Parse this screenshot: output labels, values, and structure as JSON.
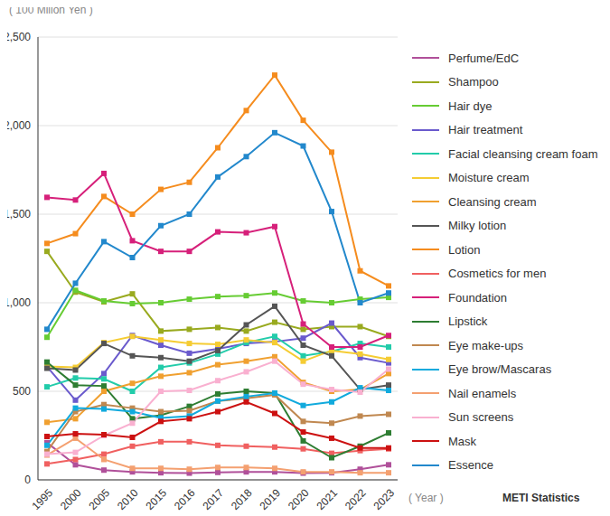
{
  "chart_data": {
    "type": "line",
    "y_label": "( 100 Milion Yen )",
    "x_label": "( Year )",
    "annotation": "METI Statistics",
    "categories": [
      "1995",
      "2000",
      "2005",
      "2010",
      "2015",
      "2016",
      "2017",
      "2018",
      "2019",
      "2020",
      "2021",
      "2022",
      "2023"
    ],
    "ylim": [
      0,
      2500
    ],
    "yticks": [
      0,
      500,
      {
        "value": 1000,
        "label": "1,000"
      },
      {
        "value": 1500,
        "label": "1,500"
      },
      {
        "value": 2000,
        "label": "2,000"
      },
      {
        "value": 2500,
        "label": "2,500"
      }
    ],
    "grid": true,
    "marker": "square",
    "line_style": "solid",
    "legend": "right",
    "series": [
      {
        "name": "Perfume/EdC",
        "color": "#b0509a",
        "values": [
          210,
          85,
          55,
          45,
          40,
          38,
          42,
          45,
          45,
          38,
          40,
          60,
          85
        ]
      },
      {
        "name": "Shampoo",
        "color": "#99aa1f",
        "values": [
          1290,
          1060,
          1005,
          1050,
          840,
          850,
          860,
          840,
          890,
          850,
          865,
          865,
          810
        ]
      },
      {
        "name": "Hair dye",
        "color": "#66cc33",
        "values": [
          805,
          1070,
          1010,
          995,
          1000,
          1020,
          1035,
          1040,
          1055,
          1010,
          1000,
          1020,
          1030
        ]
      },
      {
        "name": "Hair treatment",
        "color": "#6a5acd",
        "values": [
          640,
          450,
          600,
          815,
          760,
          715,
          740,
          770,
          780,
          800,
          885,
          690,
          660
        ]
      },
      {
        "name": "Facial cleansing cream foam",
        "color": "#22ccaa",
        "values": [
          525,
          575,
          570,
          500,
          635,
          660,
          710,
          775,
          810,
          700,
          725,
          770,
          750
        ]
      },
      {
        "name": "Moisture cream",
        "color": "#f5cc33",
        "values": [
          640,
          635,
          775,
          810,
          790,
          770,
          765,
          790,
          775,
          670,
          730,
          710,
          680
        ]
      },
      {
        "name": "Cleansing cream",
        "color": "#f0a030",
        "values": [
          325,
          345,
          500,
          545,
          585,
          605,
          650,
          670,
          695,
          550,
          500,
          510,
          600
        ]
      },
      {
        "name": "Milky lotion",
        "color": "#555555",
        "values": [
          630,
          620,
          770,
          700,
          690,
          670,
          730,
          875,
          980,
          760,
          700,
          510,
          535
        ]
      },
      {
        "name": "Lotion",
        "color": "#f58c1e",
        "values": [
          1335,
          1390,
          1600,
          1500,
          1640,
          1680,
          1875,
          2085,
          2285,
          2030,
          1850,
          1180,
          1095
        ]
      },
      {
        "name": "Cosmetics for men",
        "color": "#f06060",
        "values": [
          90,
          115,
          145,
          190,
          215,
          215,
          195,
          190,
          185,
          175,
          150,
          165,
          175
        ]
      },
      {
        "name": "Foundation",
        "color": "#d6207a",
        "values": [
          1595,
          1580,
          1730,
          1350,
          1290,
          1290,
          1400,
          1395,
          1430,
          880,
          750,
          750,
          815
        ]
      },
      {
        "name": "Lipstick",
        "color": "#2e7d32",
        "values": [
          665,
          535,
          530,
          345,
          365,
          415,
          485,
          500,
          490,
          220,
          125,
          190,
          265
        ]
      },
      {
        "name": "Eye make-ups",
        "color": "#c08850",
        "values": [
          160,
          385,
          425,
          405,
          385,
          390,
          445,
          460,
          480,
          330,
          320,
          360,
          370
        ]
      },
      {
        "name": "Eye brow/Mascaras",
        "color": "#11aadd",
        "values": [
          195,
          405,
          400,
          385,
          350,
          360,
          445,
          470,
          490,
          420,
          440,
          520,
          505
        ]
      },
      {
        "name": "Nail enamels",
        "color": "#f4a070",
        "values": [
          140,
          235,
          115,
          65,
          65,
          60,
          70,
          70,
          65,
          45,
          45,
          40,
          40
        ]
      },
      {
        "name": "Sun screens",
        "color": "#f9b0d0",
        "values": [
          145,
          155,
          250,
          320,
          500,
          505,
          560,
          610,
          670,
          540,
          510,
          495,
          625
        ]
      },
      {
        "name": "Mask",
        "color": "#cc1111",
        "values": [
          245,
          260,
          255,
          240,
          330,
          345,
          385,
          440,
          375,
          270,
          235,
          180,
          180
        ]
      },
      {
        "name": "Essence",
        "color": "#2288cc",
        "values": [
          850,
          1110,
          1345,
          1255,
          1435,
          1500,
          1710,
          1825,
          1960,
          1885,
          1515,
          1000,
          1055
        ]
      }
    ]
  }
}
